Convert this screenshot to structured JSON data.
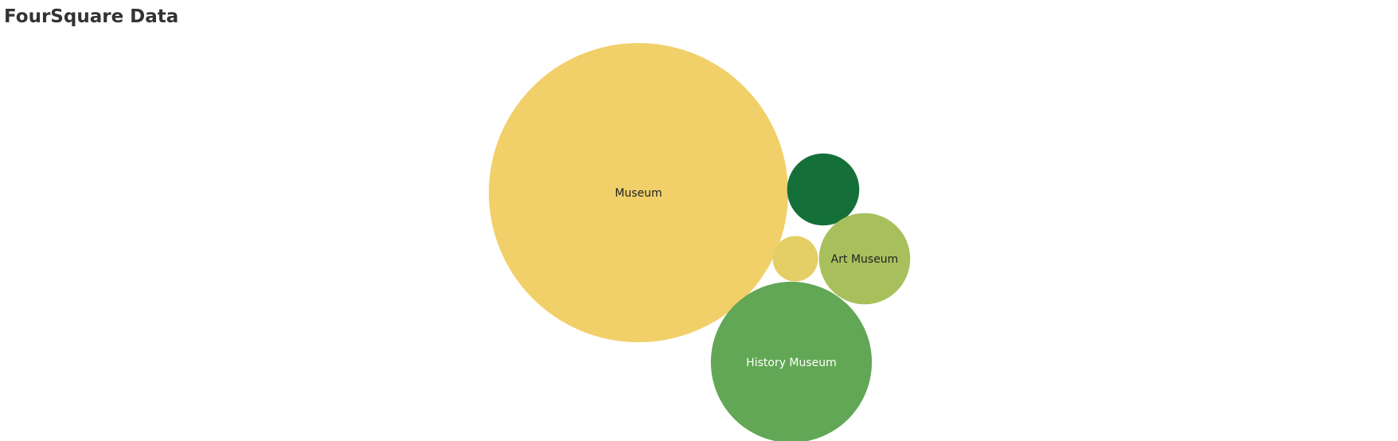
{
  "title": "FourSquare Data",
  "chart_data": {
    "type": "bubble",
    "title": "FourSquare Data",
    "bubbles": [
      {
        "category": "Museum",
        "label": "Museum",
        "size": 100,
        "color": "#f1d06a",
        "label_color": "#222222"
      },
      {
        "category": "",
        "label": "",
        "size": 5.8,
        "color": "#147038",
        "label_color": "#ffffff"
      },
      {
        "category": "Art Museum",
        "label": "Art Museum",
        "size": 9.3,
        "color": "#a8c05c",
        "label_color": "#222222"
      },
      {
        "category": "",
        "label": "",
        "size": 2.3,
        "color": "#e4cf66",
        "label_color": "#222222"
      },
      {
        "category": "History Museum",
        "label": "History Museum",
        "size": 28.9,
        "color": "#62a755",
        "label_color": "#ffffff"
      }
    ]
  }
}
